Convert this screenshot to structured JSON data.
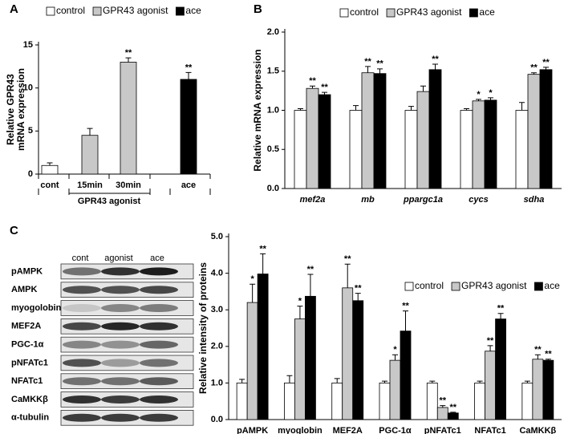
{
  "panels": [
    "A",
    "B",
    "C"
  ],
  "chart_data": [
    {
      "type": "bar",
      "y_label_lines": [
        "Relative GPR43",
        "mRNA expression"
      ],
      "categories": [
        "cont",
        "15min",
        "30min",
        "ace"
      ],
      "x_group_label": "GPR43 agonist",
      "values": [
        1,
        4.5,
        13,
        11
      ],
      "errors": [
        0.3,
        0.8,
        0.5,
        0.8
      ],
      "colors": [
        "#ffffff",
        "#c8c8c8",
        "#c8c8c8",
        "#000000"
      ],
      "significance": [
        null,
        null,
        "**",
        "**"
      ],
      "legend": [
        {
          "name": "control",
          "color": "#ffffff"
        },
        {
          "name": "GPR43 agonist",
          "color": "#c8c8c8"
        },
        {
          "name": "ace",
          "color": "#000000"
        }
      ],
      "ylim": [
        0,
        15
      ],
      "yticks": [
        0,
        5,
        10,
        15
      ]
    },
    {
      "type": "bar",
      "y_label": "Relative mRNA expression",
      "categories": [
        "mef2a",
        "mb",
        "ppargc1a",
        "cycs",
        "sdha"
      ],
      "series": [
        {
          "name": "control",
          "color": "#ffffff",
          "values": [
            1,
            1,
            1,
            1,
            1
          ],
          "errors": [
            0.02,
            0.06,
            0.05,
            0.02,
            0.1
          ],
          "significance": [
            null,
            null,
            null,
            null,
            null
          ]
        },
        {
          "name": "GPR43 agonist",
          "color": "#c8c8c8",
          "values": [
            1.28,
            1.48,
            1.24,
            1.12,
            1.46
          ],
          "errors": [
            0.03,
            0.08,
            0.07,
            0.02,
            0.02
          ],
          "significance": [
            "**",
            "**",
            null,
            "*",
            "**"
          ]
        },
        {
          "name": "ace",
          "color": "#000000",
          "values": [
            1.2,
            1.47,
            1.52,
            1.13,
            1.52
          ],
          "errors": [
            0.03,
            0.06,
            0.07,
            0.03,
            0.03
          ],
          "significance": [
            "**",
            "**",
            "**",
            "*",
            "**"
          ]
        }
      ],
      "ylim": [
        0,
        2
      ],
      "yticks": [
        {
          "value": 0,
          "label": "0.0"
        },
        0.5,
        {
          "value": 1,
          "label": "1.0"
        },
        1.5,
        {
          "value": 2,
          "label": "2.0"
        }
      ]
    },
    {
      "type": "bar",
      "y_label": "Relative intensity of proteins",
      "categories": [
        "pAMPK",
        "myoglobin",
        "MEF2A",
        "PGC-1α",
        "pNFATc1",
        "NFATc1",
        "CaMKKβ"
      ],
      "series": [
        {
          "name": "control",
          "color": "#ffffff",
          "values": [
            1,
            1,
            1,
            1,
            1,
            1,
            1
          ],
          "errors": [
            0.1,
            0.2,
            0.12,
            0.05,
            0.05,
            0.05,
            0.05
          ],
          "significance": [
            null,
            null,
            null,
            null,
            null,
            null,
            null
          ]
        },
        {
          "name": "GPR43 agonist",
          "color": "#c8c8c8",
          "values": [
            3.2,
            2.75,
            3.6,
            1.62,
            0.33,
            1.87,
            1.65
          ],
          "errors": [
            0.5,
            0.35,
            0.65,
            0.15,
            0.05,
            0.15,
            0.12
          ],
          "significance": [
            "*",
            "*",
            "**",
            "*",
            "**",
            "**",
            "**"
          ]
        },
        {
          "name": "ace",
          "color": "#000000",
          "values": [
            3.98,
            3.37,
            3.25,
            2.42,
            0.18,
            2.75,
            1.62
          ],
          "errors": [
            0.55,
            0.6,
            0.2,
            0.55,
            0.02,
            0.15,
            0.03
          ],
          "significance": [
            "**",
            "**",
            "**",
            "**",
            "**",
            "**",
            "**"
          ]
        }
      ],
      "ylim": [
        0,
        5
      ],
      "yticks": [
        {
          "value": 0,
          "label": "0.0"
        },
        {
          "value": 1,
          "label": "1.0"
        },
        {
          "value": 2,
          "label": "2.0"
        },
        {
          "value": 3,
          "label": "3.0"
        },
        {
          "value": 4,
          "label": "4.0"
        },
        {
          "value": 5,
          "label": "5.0"
        }
      ]
    }
  ],
  "blot": {
    "columns": [
      "cont",
      "agonist",
      "ace"
    ],
    "rows": [
      "pAMPK",
      "AMPK",
      "myogolobin",
      "MEF2A",
      "PGC-1α",
      "pNFATc1",
      "NFATc1",
      "CaMKKβ",
      "α-tubulin"
    ]
  }
}
